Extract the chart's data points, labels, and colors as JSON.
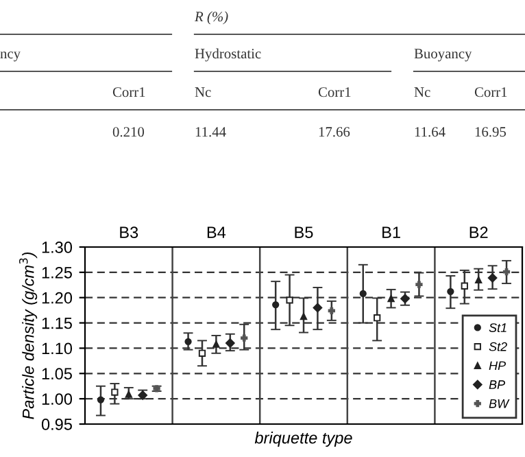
{
  "chart_data": {
    "type": "scatter",
    "categories": [
      "B3",
      "B4",
      "B5",
      "B1",
      "B2"
    ],
    "xlabel": "briquette type",
    "ylabel": "Particle density (g/cm$^{3}$)",
    "ylim": [
      0.95,
      1.3
    ],
    "yticks": [
      {
        "value": 0.95,
        "label": "0.95"
      },
      {
        "value": 1.0,
        "label": "1.00"
      },
      {
        "value": 1.05,
        "label": "1.05"
      },
      {
        "value": 1.1,
        "label": "1.10"
      },
      {
        "value": 1.15,
        "label": "1.15"
      },
      {
        "value": 1.2,
        "label": "1.20"
      },
      {
        "value": 1.25,
        "label": "1.25"
      },
      {
        "value": 1.3,
        "label": "1.30"
      }
    ],
    "grid": "y",
    "legend": "bottom right",
    "series": [
      {
        "name": "St1",
        "color": "#222222",
        "marker": "circle",
        "values": [
          0.998,
          1.113,
          1.186,
          1.208,
          1.212
        ],
        "errors": [
          [
            0.967,
            1.025
          ],
          [
            1.097,
            1.13
          ],
          [
            1.137,
            1.232
          ],
          [
            1.15,
            1.265
          ],
          [
            1.179,
            1.243
          ]
        ]
      },
      {
        "name": "St2",
        "color": "#222222",
        "marker": "square",
        "values": [
          1.013,
          1.09,
          1.195,
          1.16,
          1.223
        ],
        "errors": [
          [
            0.99,
            1.03
          ],
          [
            1.065,
            1.115
          ],
          [
            1.145,
            1.245
          ],
          [
            1.115,
            1.199
          ],
          [
            1.188,
            1.254
          ]
        ]
      },
      {
        "name": "HP",
        "color": "#222222",
        "marker": "triangle",
        "values": [
          1.009,
          1.108,
          1.163,
          1.198,
          1.235
        ],
        "errors": [
          [
            1.0,
            1.022
          ],
          [
            1.09,
            1.125
          ],
          [
            1.131,
            1.199
          ],
          [
            1.18,
            1.216
          ],
          [
            1.215,
            1.257
          ]
        ]
      },
      {
        "name": "BP",
        "color": "#222222",
        "marker": "diamond",
        "values": [
          1.007,
          1.11,
          1.18,
          1.198,
          1.239
        ],
        "errors": [
          [
            1.0,
            1.017
          ],
          [
            1.095,
            1.128
          ],
          [
            1.137,
            1.22
          ],
          [
            1.185,
            1.211
          ],
          [
            1.217,
            1.263
          ]
        ]
      },
      {
        "name": "BW",
        "color": "#555555",
        "marker": "cross",
        "values": [
          1.02,
          1.12,
          1.174,
          1.226,
          1.251
        ],
        "errors": [
          [
            1.015,
            1.025
          ],
          [
            1.097,
            1.147
          ],
          [
            1.155,
            1.193
          ],
          [
            1.203,
            1.249
          ],
          [
            1.228,
            1.273
          ]
        ]
      }
    ],
    "annotations": [
      "R (%)",
      "ncy",
      "Hydrostatic",
      "Buoyancy",
      "Corr1",
      "Nc",
      "Corr1",
      "Nc",
      "Corr1",
      "0.210",
      "11.44",
      "17.66",
      "11.64",
      "16.95"
    ]
  }
}
